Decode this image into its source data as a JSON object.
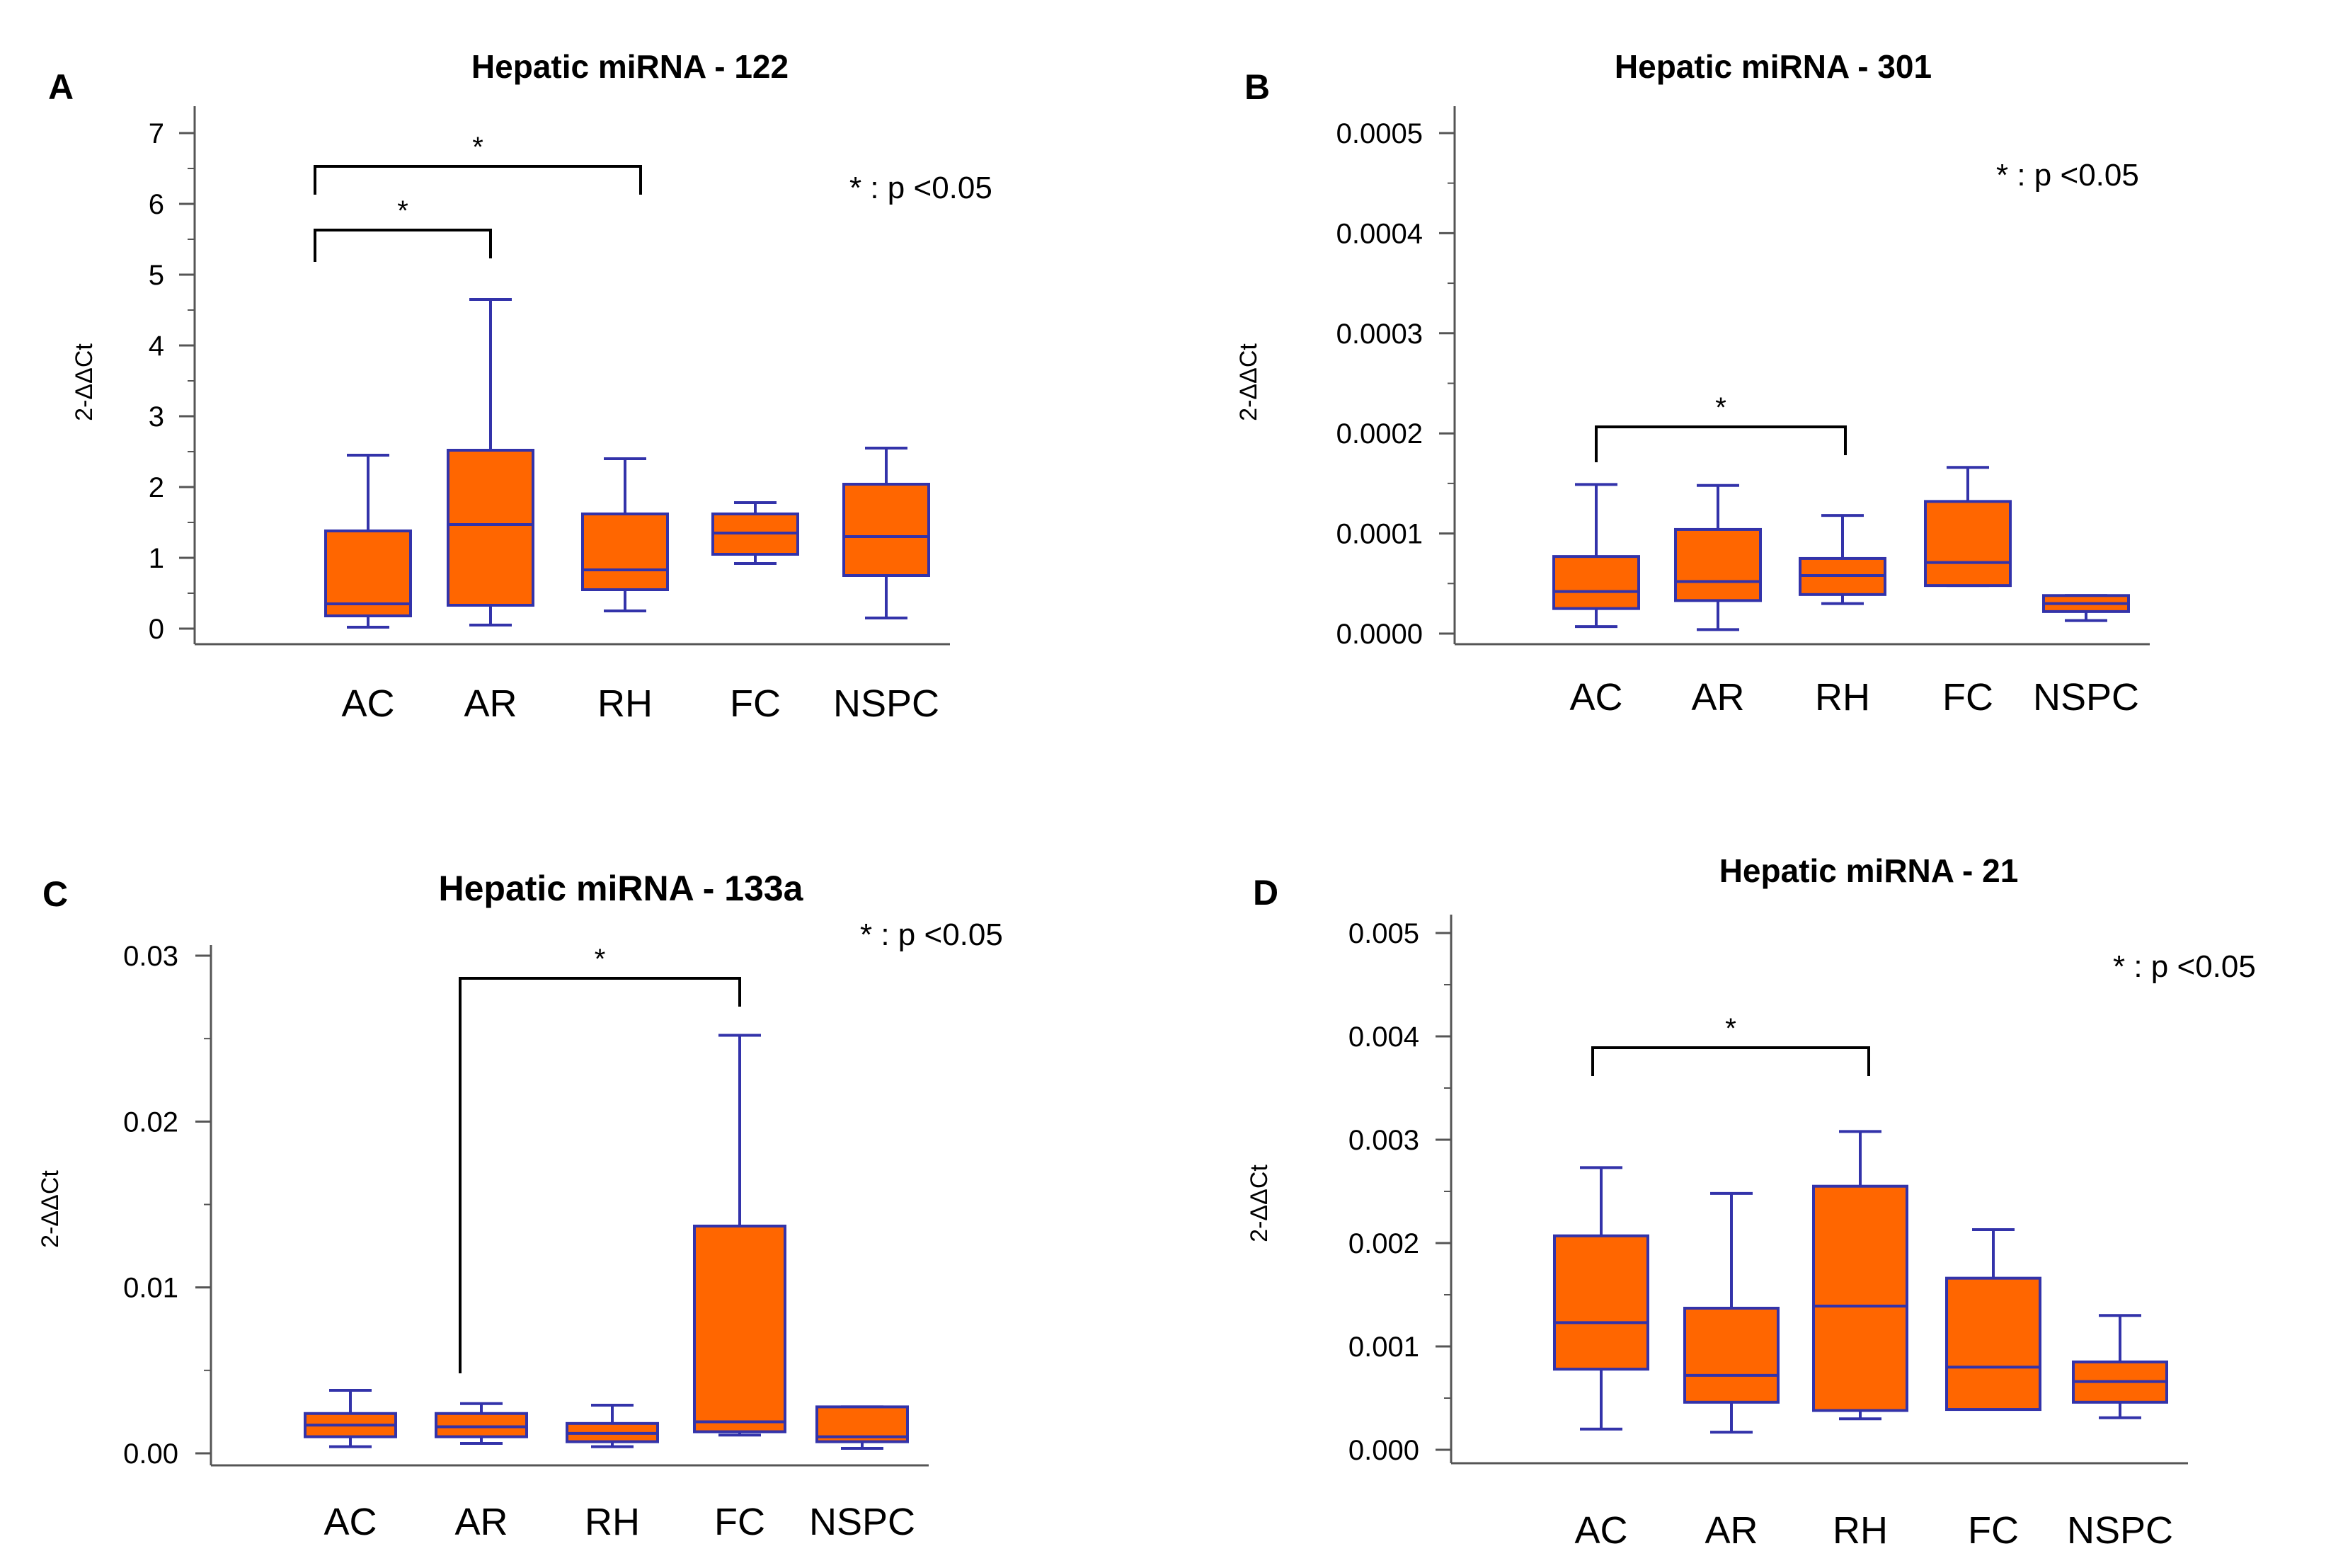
{
  "panels": [
    {
      "letter": "A",
      "title": "Hepatic miRNA - 122",
      "ylabel": "2-ΔΔCt",
      "significance_label": "* : p <0.05",
      "y_ticks": [
        "0",
        "1",
        "2",
        "3",
        "4",
        "5",
        "6",
        "7"
      ],
      "categories": [
        "AC",
        "AR",
        "RH",
        "FC",
        "NSPC"
      ],
      "comparisons": [
        {
          "groups": [
            "AC",
            "AR"
          ],
          "label": "*"
        },
        {
          "groups": [
            "AC",
            "RH"
          ],
          "label": "*"
        }
      ]
    },
    {
      "letter": "B",
      "title": "Hepatic miRNA - 301",
      "ylabel": "2-ΔΔCt",
      "significance_label": "* : p <0.05",
      "y_ticks": [
        "0.0000",
        "0.0001",
        "0.0002",
        "0.0003",
        "0.0004",
        "0.0005"
      ],
      "categories": [
        "AC",
        "AR",
        "RH",
        "FC",
        "NSPC"
      ],
      "comparisons": [
        {
          "groups": [
            "AC",
            "RH"
          ],
          "label": "*"
        }
      ]
    },
    {
      "letter": "C",
      "title": "Hepatic miRNA - 133a",
      "ylabel": "2-ΔΔCt",
      "significance_label": "* : p <0.05",
      "y_ticks": [
        "0.00",
        "0.01",
        "0.02",
        "0.03"
      ],
      "categories": [
        "AC",
        "AR",
        "RH",
        "FC",
        "NSPC"
      ],
      "comparisons": [
        {
          "groups": [
            "AR",
            "FC"
          ],
          "label": "*"
        }
      ]
    },
    {
      "letter": "D",
      "title": "Hepatic miRNA - 21",
      "ylabel": "2-ΔΔCt",
      "significance_label": "* : p <0.05",
      "y_ticks": [
        "0.000",
        "0.001",
        "0.002",
        "0.003",
        "0.004",
        "0.005"
      ],
      "categories": [
        "AC",
        "AR",
        "RH",
        "FC",
        "NSPC"
      ],
      "comparisons": [
        {
          "groups": [
            "AC",
            "RH"
          ],
          "label": "*"
        }
      ]
    }
  ],
  "colors": {
    "box_fill": "#ff6600",
    "box_stroke": "#3333aa",
    "axis": "#555555",
    "bracket": "#000000"
  },
  "chart_data": [
    {
      "type": "box",
      "title": "Hepatic miRNA - 122",
      "ylabel": "2-ΔΔCt",
      "ylim": [
        0,
        7
      ],
      "categories": [
        "AC",
        "AR",
        "RH",
        "FC",
        "NSPC"
      ],
      "boxes": [
        {
          "min": 0.02,
          "q1": 0.18,
          "median": 0.35,
          "q3": 1.38,
          "max": 2.45
        },
        {
          "min": 0.05,
          "q1": 0.33,
          "median": 1.47,
          "q3": 2.52,
          "max": 4.65
        },
        {
          "min": 0.25,
          "q1": 0.55,
          "median": 0.83,
          "q3": 1.62,
          "max": 2.4
        },
        {
          "min": 0.92,
          "q1": 1.05,
          "median": 1.35,
          "q3": 1.62,
          "max": 1.78
        },
        {
          "min": 0.15,
          "q1": 0.75,
          "median": 1.3,
          "q3": 2.04,
          "max": 2.55
        }
      ]
    },
    {
      "type": "box",
      "title": "Hepatic miRNA - 301",
      "ylabel": "2-ΔΔCt",
      "ylim": [
        0,
        0.0005
      ],
      "categories": [
        "AC",
        "AR",
        "RH",
        "FC",
        "NSPC"
      ],
      "boxes": [
        {
          "min": 7e-06,
          "q1": 2.5e-05,
          "median": 4.2e-05,
          "q3": 7.7e-05,
          "max": 0.000149
        },
        {
          "min": 4e-06,
          "q1": 3.3e-05,
          "median": 5.2e-05,
          "q3": 0.000104,
          "max": 0.000148
        },
        {
          "min": 3e-05,
          "q1": 3.9e-05,
          "median": 5.8e-05,
          "q3": 7.5e-05,
          "max": 0.000118
        },
        {
          "min": 4.8e-05,
          "q1": 4.8e-05,
          "median": 7.1e-05,
          "q3": 0.000132,
          "max": 0.000166
        },
        {
          "min": 1.3e-05,
          "q1": 2.2e-05,
          "median": 3e-05,
          "q3": 3.8e-05,
          "max": 3.8e-05
        }
      ]
    },
    {
      "type": "box",
      "title": "Hepatic miRNA - 133a",
      "ylabel": "2-ΔΔCt",
      "ylim": [
        0,
        0.03
      ],
      "categories": [
        "AC",
        "AR",
        "RH",
        "FC",
        "NSPC"
      ],
      "boxes": [
        {
          "min": 0.0004,
          "q1": 0.001,
          "median": 0.0017,
          "q3": 0.0024,
          "max": 0.0038
        },
        {
          "min": 0.0006,
          "q1": 0.001,
          "median": 0.0016,
          "q3": 0.0024,
          "max": 0.003
        },
        {
          "min": 0.0004,
          "q1": 0.0007,
          "median": 0.0012,
          "q3": 0.0018,
          "max": 0.0029
        },
        {
          "min": 0.0011,
          "q1": 0.0013,
          "median": 0.0019,
          "q3": 0.0137,
          "max": 0.0252
        },
        {
          "min": 0.0003,
          "q1": 0.0007,
          "median": 0.001,
          "q3": 0.0028,
          "max": 0.0028
        }
      ]
    },
    {
      "type": "box",
      "title": "Hepatic miRNA - 21",
      "ylabel": "2-ΔΔCt",
      "ylim": [
        0,
        0.005
      ],
      "categories": [
        "AC",
        "AR",
        "RH",
        "FC",
        "NSPC"
      ],
      "boxes": [
        {
          "min": 0.0002,
          "q1": 0.00078,
          "median": 0.00123,
          "q3": 0.00207,
          "max": 0.00273
        },
        {
          "min": 0.00017,
          "q1": 0.00046,
          "median": 0.00072,
          "q3": 0.00137,
          "max": 0.00248
        },
        {
          "min": 0.0003,
          "q1": 0.00038,
          "median": 0.00139,
          "q3": 0.00255,
          "max": 0.00308
        },
        {
          "min": 0.00039,
          "q1": 0.00039,
          "median": 0.0008,
          "q3": 0.00166,
          "max": 0.00213
        },
        {
          "min": 0.00031,
          "q1": 0.00046,
          "median": 0.00066,
          "q3": 0.00085,
          "max": 0.0013
        }
      ]
    }
  ]
}
